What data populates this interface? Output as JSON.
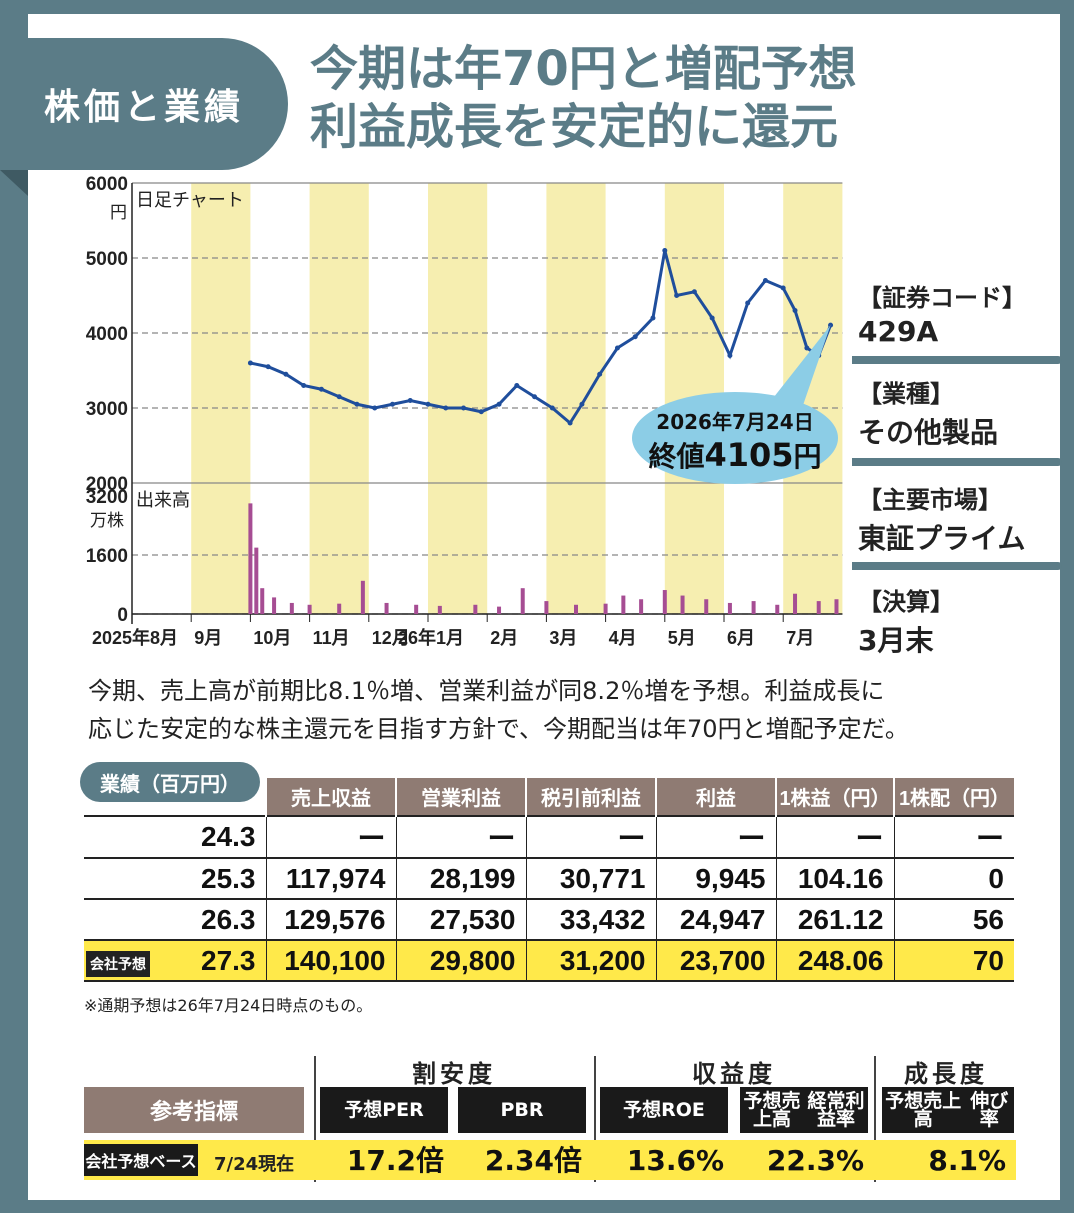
{
  "tag": "株価と業績",
  "headline": [
    "今期は年70円と増配予想",
    "利益成長を安定的に還元"
  ],
  "chart_data": [
    {
      "type": "line",
      "title": "日足チャート",
      "ylabel": "円",
      "ylim": [
        2000,
        6000
      ],
      "yticks": [
        "6000",
        "5000",
        "4000",
        "3000",
        "2000"
      ],
      "x_tick_labels": [
        "2025年8月",
        "9月",
        "10月",
        "11月",
        "12月",
        "26年1月",
        "2月",
        "3月",
        "4月",
        "5月",
        "6月",
        "7月"
      ],
      "x_month_index": [
        0,
        1,
        2,
        3,
        4,
        5,
        6,
        7,
        8,
        9,
        10,
        11
      ],
      "series": [
        {
          "x": [
            2.0,
            2.3,
            2.6,
            2.9,
            3.2,
            3.5,
            3.8,
            4.1,
            4.4,
            4.7,
            5.0,
            5.3,
            5.6,
            5.9,
            6.2,
            6.5,
            6.8,
            7.1,
            7.4,
            7.6,
            7.9,
            8.2,
            8.5,
            8.8,
            9.0,
            9.2,
            9.5,
            9.8,
            10.1,
            10.4,
            10.7,
            11.0,
            11.2,
            11.4,
            11.6,
            11.8
          ],
          "values": [
            3600,
            3550,
            3450,
            3300,
            3250,
            3150,
            3050,
            3000,
            3050,
            3100,
            3050,
            3000,
            3000,
            2950,
            3050,
            3300,
            3150,
            3000,
            2800,
            3050,
            3450,
            3800,
            3950,
            4200,
            5100,
            4500,
            4550,
            4200,
            3700,
            4400,
            4700,
            4600,
            4300,
            3800,
            3700,
            4105
          ]
        }
      ],
      "callout": {
        "date": "2026年7月24日",
        "label": "終値",
        "value": "4105",
        "unit": "円"
      }
    },
    {
      "type": "bar",
      "title": "出来高",
      "ylabel": "万株",
      "ylim": [
        0,
        3200
      ],
      "yticks": [
        "3200",
        "1600",
        "0"
      ],
      "series": [
        {
          "x": [
            2.0,
            2.1,
            2.2,
            2.4,
            2.7,
            3.0,
            3.5,
            3.9,
            4.3,
            4.8,
            5.2,
            5.8,
            6.2,
            6.6,
            7.0,
            7.5,
            8.0,
            8.3,
            8.6,
            9.0,
            9.3,
            9.7,
            10.1,
            10.5,
            10.9,
            11.2,
            11.6,
            11.9
          ],
          "values": [
            3000,
            1800,
            700,
            450,
            300,
            250,
            280,
            900,
            300,
            250,
            220,
            250,
            200,
            700,
            350,
            250,
            280,
            500,
            400,
            650,
            500,
            400,
            300,
            350,
            250,
            550,
            350,
            400
          ]
        }
      ]
    }
  ],
  "side_info": [
    {
      "label": "【証券コード】",
      "value": "429A"
    },
    {
      "label": "【業種】",
      "value": "その他製品"
    },
    {
      "label": "【主要市場】",
      "value": "東証プライム"
    },
    {
      "label": "【決算】",
      "value": "3月末"
    }
  ],
  "description": [
    "今期、売上高が前期比8.1％増、営業利益が同8.2％増を予想。利益成長に",
    "応じた安定的な株主還元を目指す方針で、今期配当は年70円と増配予定だ。"
  ],
  "table": {
    "title": "業績（百万円）",
    "headers": [
      "売上収益",
      "営業利益",
      "税引前利益",
      "利益",
      "1株益（円）",
      "1株配（円）"
    ],
    "rows": [
      {
        "year": "24.3",
        "cells": [
          "ー",
          "ー",
          "ー",
          "ー",
          "ー",
          "ー"
        ]
      },
      {
        "year": "25.3",
        "cells": [
          "117,974",
          "28,199",
          "30,771",
          "9,945",
          "104.16",
          "0"
        ]
      },
      {
        "year": "26.3",
        "cells": [
          "129,576",
          "27,530",
          "33,432",
          "24,947",
          "261.12",
          "56"
        ]
      },
      {
        "year": "27.3",
        "badge": "会社予想",
        "cells": [
          "140,100",
          "29,800",
          "31,200",
          "23,700",
          "248.06",
          "70"
        ]
      }
    ],
    "note": "※通期予想は26年7月24日時点のもの。"
  },
  "indicators": {
    "groups": [
      "割安度",
      "収益度",
      "成長度"
    ],
    "label": "参考指標",
    "names": [
      "予想PER",
      "PBR",
      "予想ROE",
      "予想売上高|経常利益率",
      "予想売上高|伸び率"
    ],
    "base": "会社予想ベース",
    "asof": "7/24現在",
    "values": [
      "17.2倍",
      "2.34倍",
      "13.6%",
      "22.3%",
      "8.1%"
    ]
  },
  "colors": {
    "frame": "#5b7c87",
    "band": "#f6eeb0",
    "price": "#1f4e9c",
    "volume": "#a64d93",
    "callout": "#8ccde6",
    "highlight": "#ffe94a",
    "header": "#8f7b73"
  }
}
